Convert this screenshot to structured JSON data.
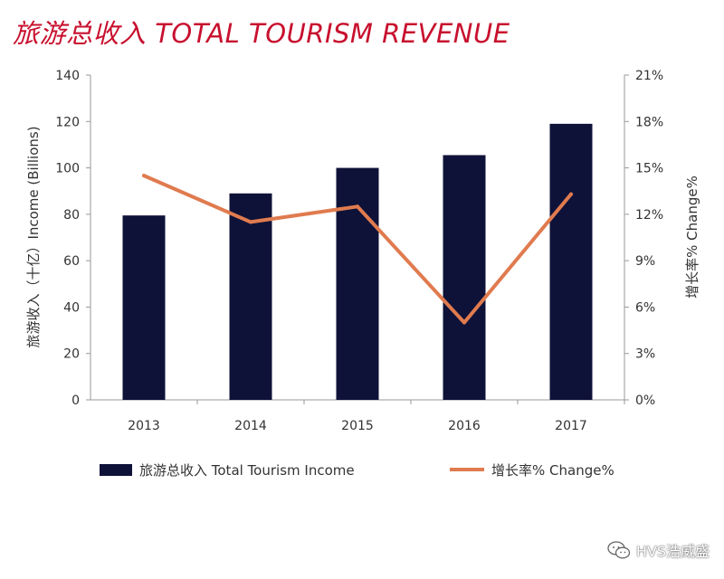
{
  "title": "旅游总收入 TOTAL TOURISM REVENUE",
  "chart_data": {
    "type": "bar",
    "categories": [
      "2013",
      "2014",
      "2015",
      "2016",
      "2017"
    ],
    "series": [
      {
        "name": "旅游总收入 Total Tourism Income",
        "kind": "bar",
        "axis": "left",
        "color": "#0f1238",
        "values": [
          79.5,
          89,
          100,
          105.5,
          119
        ]
      },
      {
        "name": "增长率% Change%",
        "kind": "line",
        "axis": "right",
        "color": "#e07b4f",
        "values": [
          14.5,
          11.5,
          12.5,
          5.0,
          13.3
        ]
      }
    ],
    "ylabel": "旅游收入（十亿）Income (Billions)",
    "y2label": "增长率% Change%",
    "ylim": [
      0,
      140
    ],
    "yticks": [
      "0",
      "20",
      "40",
      "60",
      "80",
      "100",
      "120",
      "140"
    ],
    "y2lim": [
      0,
      21
    ],
    "y2ticks": [
      "0%",
      "3%",
      "6%",
      "9%",
      "12%",
      "15%",
      "18%",
      "21%"
    ],
    "grid": false,
    "legend_position": "bottom"
  },
  "watermark": {
    "text": "HVS浩威盛",
    "icon": "wechat-icon"
  }
}
